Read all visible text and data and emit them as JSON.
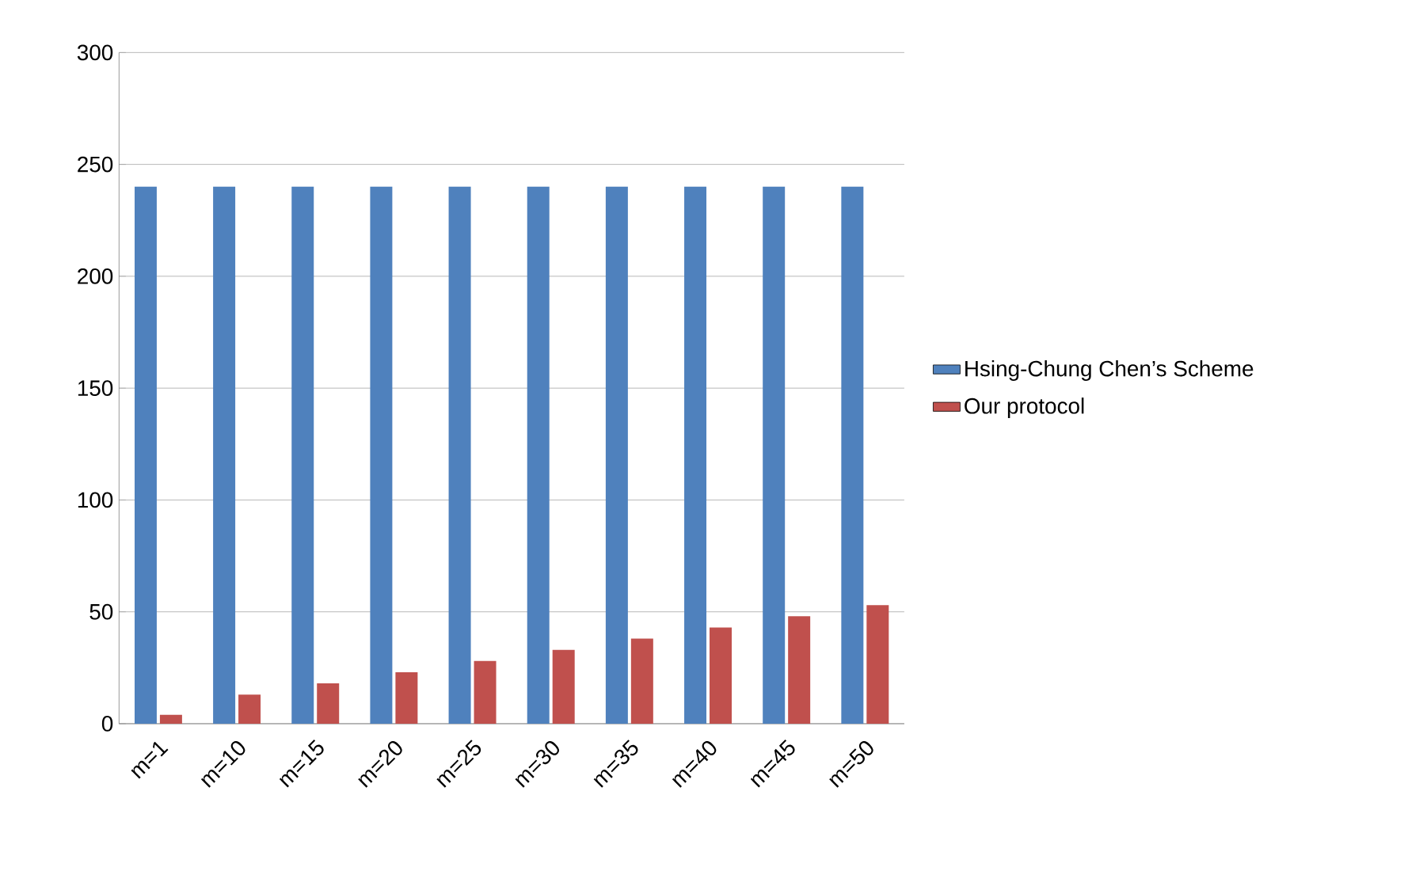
{
  "chart_data": {
    "type": "bar",
    "categories": [
      "m=1",
      "m=10",
      "m=15",
      "m=20",
      "m=25",
      "m=30",
      "m=35",
      "m=40",
      "m=45",
      "m=50"
    ],
    "series": [
      {
        "name": "Hsing-Chung Chen’s Scheme",
        "color": "#4f81bd",
        "values": [
          240,
          240,
          240,
          240,
          240,
          240,
          240,
          240,
          240,
          240
        ]
      },
      {
        "name": "Our protocol",
        "color": "#c0504d",
        "values": [
          4,
          13,
          18,
          23,
          28,
          33,
          38,
          43,
          48,
          53
        ]
      }
    ],
    "ylim": [
      0,
      300
    ],
    "yticks": [
      0,
      50,
      100,
      150,
      200,
      250,
      300
    ],
    "grid": "y",
    "legend": "right"
  }
}
